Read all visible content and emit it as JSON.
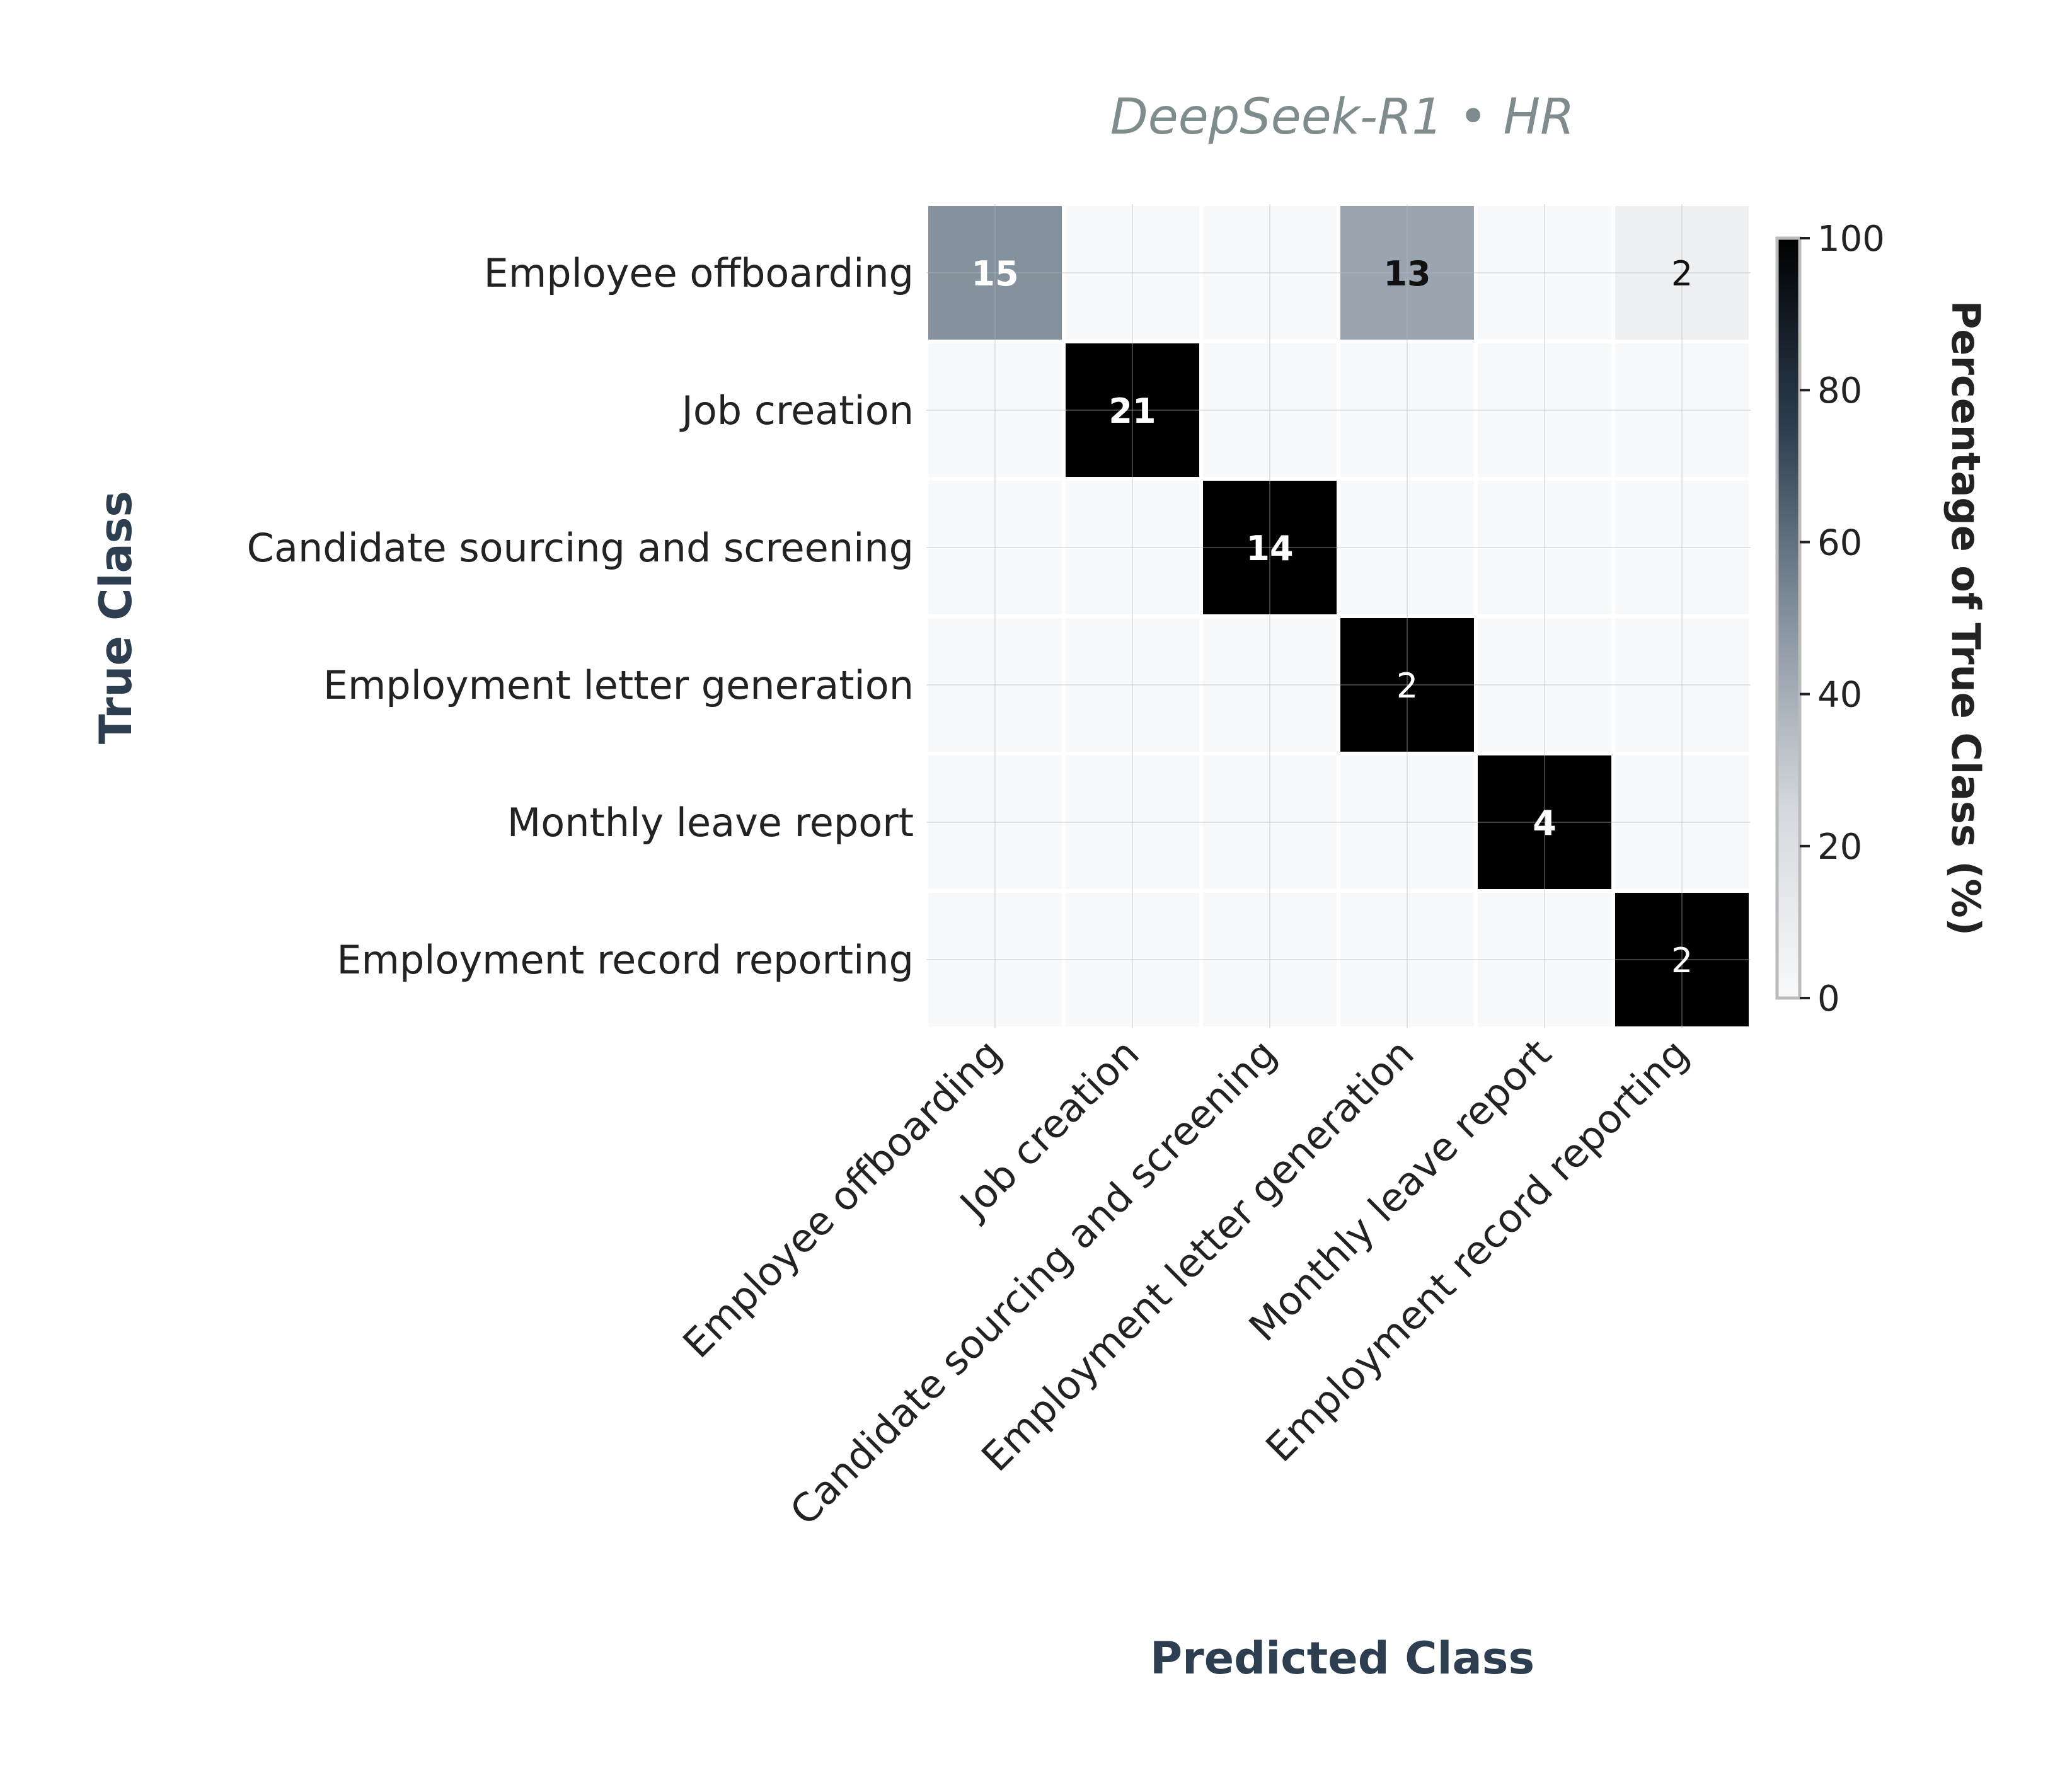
{
  "chart_data": {
    "type": "heatmap",
    "title": "DeepSeek-R1 • HR",
    "xlabel": "Predicted Class",
    "ylabel": "True Class",
    "categories": [
      "Employee offboarding",
      "Job creation",
      "Candidate sourcing and screening",
      "Employment letter generation",
      "Monthly leave report",
      "Employment record reporting"
    ],
    "matrix": [
      [
        15,
        0,
        0,
        13,
        0,
        2
      ],
      [
        0,
        21,
        0,
        0,
        0,
        0
      ],
      [
        0,
        0,
        14,
        0,
        0,
        0
      ],
      [
        0,
        0,
        0,
        2,
        0,
        0
      ],
      [
        0,
        0,
        0,
        0,
        4,
        0
      ],
      [
        0,
        0,
        0,
        0,
        0,
        2
      ]
    ],
    "colorbar": {
      "label": "Percentage of True Class (%)",
      "range": [
        0,
        100
      ],
      "ticks": [
        0,
        20,
        40,
        60,
        80,
        100
      ]
    },
    "colors": {
      "title": "#7f8c8d",
      "axis_label": "#2c3e50",
      "tick_text": "#222222",
      "empty_cell": "#f8f9fa",
      "cell_gap": "#ffffff",
      "frame": "#5d6d7e"
    }
  }
}
